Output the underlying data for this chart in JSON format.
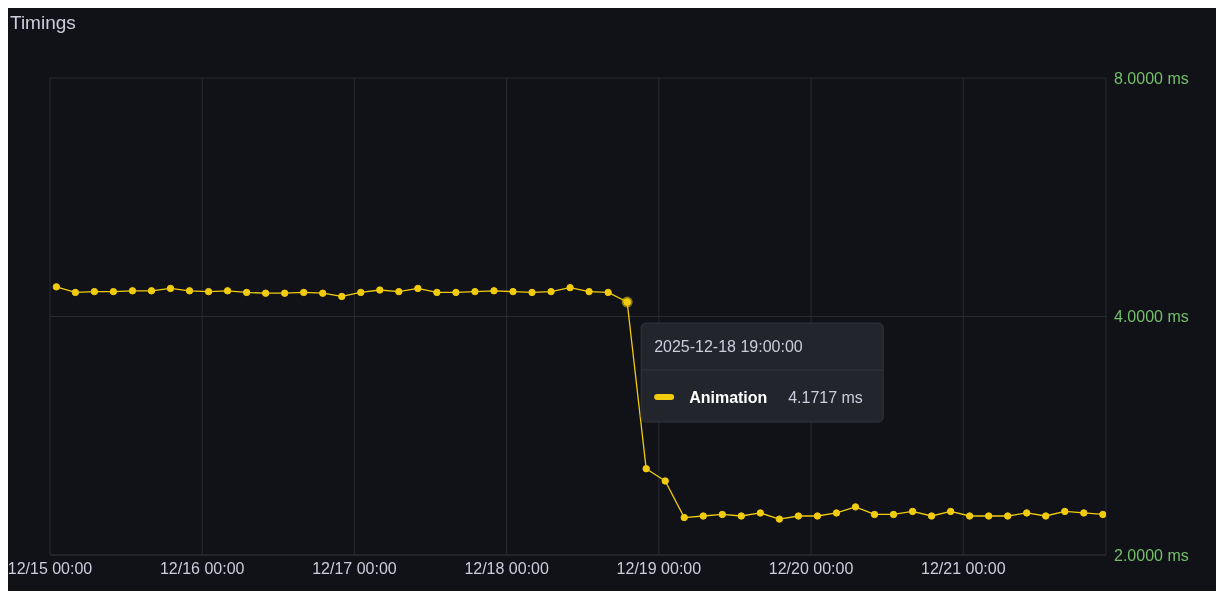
{
  "chart_data": {
    "type": "line",
    "title": "Timings",
    "log": "y",
    "grid": true,
    "marker": "circle",
    "line_style": "solid",
    "legend": "right",
    "x": [
      "2025-12-15T01:00",
      "2025-12-15T04:00",
      "2025-12-15T07:00",
      "2025-12-15T10:00",
      "2025-12-15T13:00",
      "2025-12-15T16:00",
      "2025-12-15T19:00",
      "2025-12-15T22:00",
      "2025-12-16T01:00",
      "2025-12-16T04:00",
      "2025-12-16T07:00",
      "2025-12-16T10:00",
      "2025-12-16T13:00",
      "2025-12-16T16:00",
      "2025-12-16T19:00",
      "2025-12-16T22:00",
      "2025-12-17T01:00",
      "2025-12-17T04:00",
      "2025-12-17T07:00",
      "2025-12-17T10:00",
      "2025-12-17T13:00",
      "2025-12-17T16:00",
      "2025-12-17T19:00",
      "2025-12-17T22:00",
      "2025-12-18T01:00",
      "2025-12-18T04:00",
      "2025-12-18T07:00",
      "2025-12-18T10:00",
      "2025-12-18T13:00",
      "2025-12-18T16:00",
      "2025-12-18T19:00",
      "2025-12-18T22:00",
      "2025-12-19T01:00",
      "2025-12-19T04:00",
      "2025-12-19T07:00",
      "2025-12-19T10:00",
      "2025-12-19T13:00",
      "2025-12-19T16:00",
      "2025-12-19T19:00",
      "2025-12-19T22:00",
      "2025-12-20T01:00",
      "2025-12-20T04:00",
      "2025-12-20T07:00",
      "2025-12-20T10:00",
      "2025-12-20T13:00",
      "2025-12-20T16:00",
      "2025-12-20T19:00",
      "2025-12-20T22:00",
      "2025-12-21T01:00",
      "2025-12-21T04:00",
      "2025-12-21T07:00",
      "2025-12-21T10:00",
      "2025-12-21T13:00",
      "2025-12-21T16:00",
      "2025-12-21T19:00",
      "2025-12-21T22:00"
    ],
    "series": [
      {
        "name": "Animation",
        "color": "#f2cc0c",
        "values": [
          4.36,
          4.29,
          4.3,
          4.3,
          4.31,
          4.31,
          4.34,
          4.31,
          4.3,
          4.31,
          4.29,
          4.28,
          4.28,
          4.29,
          4.28,
          4.24,
          4.29,
          4.32,
          4.3,
          4.34,
          4.29,
          4.29,
          4.3,
          4.31,
          4.3,
          4.29,
          4.3,
          4.35,
          4.3,
          4.29,
          4.1717,
          2.57,
          2.48,
          2.23,
          2.24,
          2.25,
          2.24,
          2.26,
          2.22,
          2.24,
          2.24,
          2.26,
          2.3,
          2.25,
          2.25,
          2.27,
          2.24,
          2.27,
          2.24,
          2.24,
          2.24,
          2.26,
          2.24,
          2.27,
          2.26,
          2.25
        ]
      }
    ],
    "xlim": [
      "2025-12-15T00:00",
      "2025-12-21T22:30"
    ],
    "xticks": [
      {
        "value": "2025-12-15T00:00",
        "label": "12/15 00:00"
      },
      {
        "value": "2025-12-16T00:00",
        "label": "12/16 00:00"
      },
      {
        "value": "2025-12-17T00:00",
        "label": "12/17 00:00"
      },
      {
        "value": "2025-12-18T00:00",
        "label": "12/18 00:00"
      },
      {
        "value": "2025-12-19T00:00",
        "label": "12/19 00:00"
      },
      {
        "value": "2025-12-20T00:00",
        "label": "12/20 00:00"
      },
      {
        "value": "2025-12-21T00:00",
        "label": "12/21 00:00"
      }
    ],
    "ylim": [
      2,
      8
    ],
    "yticks": [
      {
        "value": 2,
        "label": "2.0000 ms"
      },
      {
        "value": 4,
        "label": "4.0000 ms"
      },
      {
        "value": 8,
        "label": "8.0000 ms"
      }
    ],
    "annotations": [
      {
        "text": "2025-12-18 19:00:00",
        "x": "2025-12-18T19:00",
        "y": 4.1717
      },
      "4.1717 ms"
    ]
  }
}
